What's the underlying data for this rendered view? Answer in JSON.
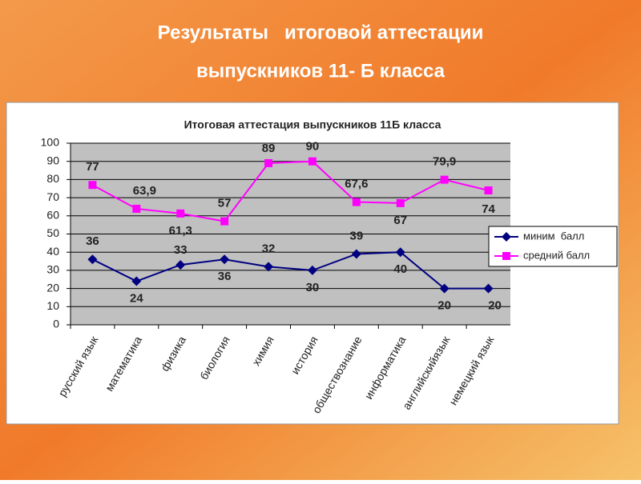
{
  "slide_title": [
    "Результаты   итоговой аттестации",
    "выпускников 11- Б класса"
  ],
  "chart_data": {
    "type": "line",
    "title": "Итоговая аттестация выпускников 11Б класса",
    "categories": [
      "русский язык",
      "математика",
      "физика",
      "биология",
      "химия",
      "история",
      "обществознание",
      "информатика",
      "английскийязык",
      "немецкий язык"
    ],
    "series": [
      {
        "name": "миним  балл",
        "color": "#000080",
        "marker": "diamond",
        "values": [
          36,
          24,
          33,
          36,
          32,
          30,
          39,
          40,
          20,
          20
        ]
      },
      {
        "name": "средний балл",
        "color": "#ff00ff",
        "marker": "square",
        "values": [
          77,
          63.9,
          61.3,
          57,
          89,
          90,
          67.6,
          67,
          79.9,
          74
        ],
        "value_labels": [
          "77",
          "63,9",
          "61,3",
          "57",
          "89",
          "90",
          "67,6",
          "67",
          "79,9",
          "74"
        ]
      }
    ],
    "ylim": [
      0,
      100
    ],
    "yticks": [
      0,
      10,
      20,
      30,
      40,
      50,
      60,
      70,
      80,
      90,
      100
    ],
    "grid": true,
    "legend": "right"
  }
}
